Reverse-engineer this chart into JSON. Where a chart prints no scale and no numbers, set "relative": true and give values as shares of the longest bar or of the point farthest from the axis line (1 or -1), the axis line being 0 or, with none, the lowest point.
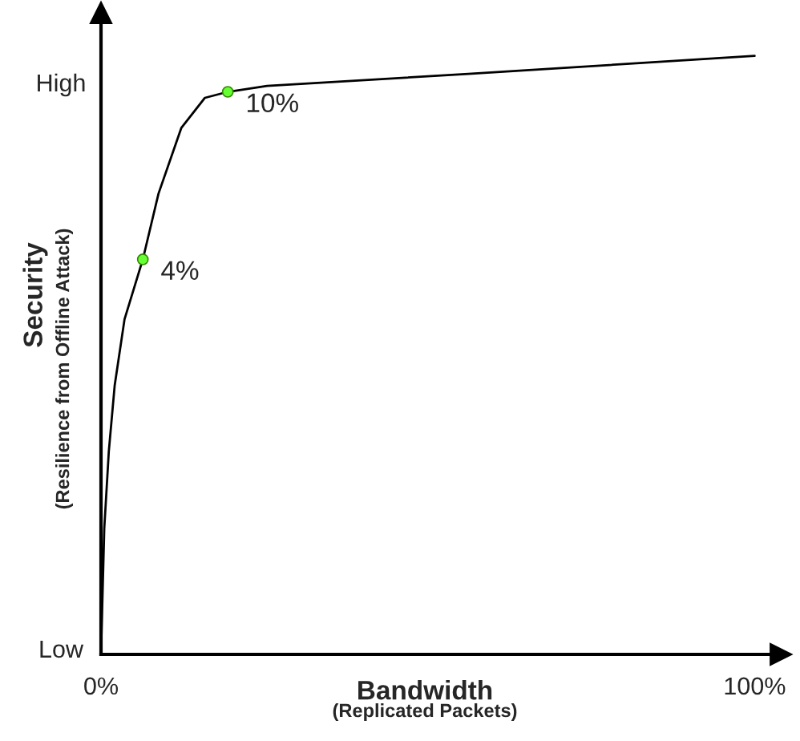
{
  "chart_data": {
    "type": "line",
    "relative": true,
    "xlabel": "Bandwidth",
    "ylabel": "Security",
    "xlim": [
      0,
      104
    ],
    "xticks": [
      {
        "value": 0,
        "label": "0%"
      },
      {
        "value": 100,
        "label": "100%"
      }
    ],
    "series": [
      {
        "color": "#000000",
        "marker": "none",
        "x": [
          0,
          0.5,
          1.2,
          2.1,
          3.6,
          6.4,
          8.8,
          12.3,
          15.9,
          19.4,
          25.4,
          56.2,
          100
        ],
        "values": [
          0,
          0.21,
          0.34,
          0.45,
          0.56,
          0.66,
          0.77,
          0.88,
          0.93,
          0.94,
          0.95,
          0.97,
          1.0
        ]
      },
      {
        "type": "scatter",
        "color": "#66ff33",
        "marker": "circle",
        "x": [
          6.4,
          19.4
        ],
        "values": [
          0.66,
          0.94
        ]
      }
    ],
    "annotations": [
      {
        "text": "4%",
        "x": 6.4,
        "y": 0.66
      },
      {
        "text": "10%",
        "x": 19.4,
        "y": 0.94
      },
      "Low",
      "High",
      "(Replicated Packets)",
      "(Resilience from Offline Attack)"
    ],
    "grid": false,
    "legend": false
  }
}
